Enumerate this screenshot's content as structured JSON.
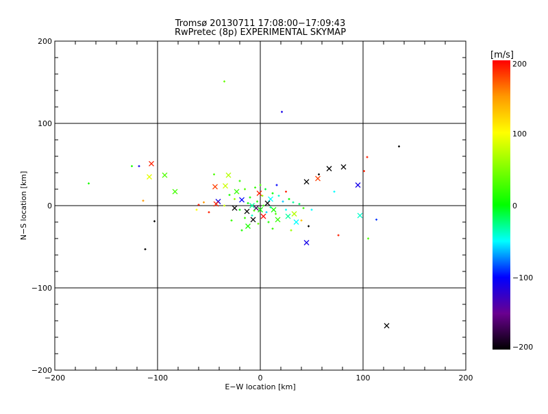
{
  "chart_data": {
    "type": "scatter",
    "title": "Tromsø 20130711 17:08:00−17:09:43",
    "subtitle": "RwPretec (8p) EXPERIMENTAL SKYMAP",
    "xlabel": "E−W location [km]",
    "ylabel": "N−S location [km]",
    "xlim": [
      -200,
      200
    ],
    "ylim": [
      -200,
      200
    ],
    "xticks": [
      "−200",
      "−100",
      "0",
      "100",
      "200"
    ],
    "yticks": [
      "−200",
      "−100",
      "0",
      "100",
      "200"
    ],
    "grid": true,
    "colorbar": {
      "label": "[m/s]",
      "range": [
        -200,
        200
      ],
      "ticks": [
        "200",
        "100",
        "0",
        "−100",
        "−200"
      ],
      "colormap": "rainbow (black-purple-blue-cyan-green-yellow-red)"
    },
    "points_fields": [
      "x_km",
      "y_km",
      "velocity_ms",
      "marker"
    ],
    "points": [
      [
        -106,
        51,
        190,
        "x"
      ],
      [
        -108,
        35,
        90,
        "x"
      ],
      [
        -93,
        37,
        30,
        "x"
      ],
      [
        -83,
        17,
        25,
        "x"
      ],
      [
        -44,
        23,
        180,
        "x"
      ],
      [
        -41,
        5,
        -110,
        "x"
      ],
      [
        -43,
        2,
        190,
        "x"
      ],
      [
        -34,
        24,
        80,
        "x"
      ],
      [
        -31,
        37,
        70,
        "x"
      ],
      [
        -25,
        -3,
        -200,
        "x"
      ],
      [
        -23,
        17,
        20,
        "x"
      ],
      [
        -13,
        -7,
        -200,
        "x"
      ],
      [
        -7,
        -17,
        -200,
        "x"
      ],
      [
        -18,
        7,
        -100,
        "x"
      ],
      [
        45,
        29,
        -200,
        "x"
      ],
      [
        56,
        33,
        180,
        "x"
      ],
      [
        67,
        45,
        -200,
        "x"
      ],
      [
        81,
        47,
        -200,
        "x"
      ],
      [
        95,
        25,
        -110,
        "x"
      ],
      [
        97,
        -12,
        -40,
        "x"
      ],
      [
        45,
        -45,
        -110,
        "x"
      ],
      [
        123,
        -146,
        -200,
        "x"
      ],
      [
        7,
        3,
        -200,
        "x"
      ],
      [
        -1,
        15,
        190,
        "x"
      ],
      [
        13,
        -5,
        10,
        "x"
      ],
      [
        -4,
        -3,
        -170,
        "x"
      ],
      [
        3,
        -13,
        200,
        "x"
      ],
      [
        17,
        -17,
        20,
        "x"
      ],
      [
        -12,
        -25,
        10,
        "x"
      ],
      [
        27,
        -13,
        -30,
        "x"
      ],
      [
        33,
        -10,
        70,
        "x"
      ],
      [
        35,
        -20,
        -50,
        "x"
      ],
      [
        0,
        -5,
        0,
        "x"
      ],
      [
        -8,
        0,
        -30,
        "x"
      ],
      [
        10,
        8,
        -50,
        "x"
      ],
      [
        -35,
        151,
        40,
        "+"
      ],
      [
        21,
        114,
        -110,
        "+"
      ],
      [
        135,
        72,
        -200,
        "+"
      ],
      [
        104,
        59,
        190,
        "+"
      ],
      [
        101,
        42,
        190,
        "+"
      ],
      [
        -125,
        48,
        10,
        "+"
      ],
      [
        -118,
        48,
        -110,
        "+"
      ],
      [
        -114,
        6,
        150,
        "+"
      ],
      [
        -167,
        27,
        10,
        "+"
      ],
      [
        -103,
        -19,
        -200,
        "+"
      ],
      [
        -112,
        -53,
        -200,
        "+"
      ],
      [
        113,
        -17,
        -90,
        "+"
      ],
      [
        105,
        -40,
        30,
        "+"
      ],
      [
        76,
        -36,
        190,
        "+"
      ],
      [
        72,
        17,
        -50,
        "+"
      ],
      [
        57,
        38,
        -200,
        "+"
      ],
      [
        47,
        -25,
        -200,
        "+"
      ],
      [
        25,
        17,
        190,
        "+"
      ],
      [
        -55,
        4,
        150,
        "+"
      ],
      [
        -60,
        1,
        190,
        "+"
      ],
      [
        -50,
        -8,
        190,
        "+"
      ],
      [
        -62,
        -5,
        100,
        "+"
      ],
      [
        -45,
        38,
        30,
        "+"
      ],
      [
        -30,
        13,
        10,
        "+"
      ],
      [
        -20,
        30,
        20,
        "+"
      ],
      [
        -15,
        20,
        30,
        "+"
      ],
      [
        -25,
        8,
        60,
        "+"
      ],
      [
        -35,
        0,
        80,
        "+"
      ],
      [
        -10,
        10,
        10,
        "+"
      ],
      [
        -5,
        22,
        20,
        "+"
      ],
      [
        0,
        25,
        30,
        "+"
      ],
      [
        5,
        20,
        -10,
        "+"
      ],
      [
        12,
        15,
        0,
        "+"
      ],
      [
        18,
        12,
        -40,
        "+"
      ],
      [
        22,
        5,
        -60,
        "+"
      ],
      [
        28,
        8,
        0,
        "+"
      ],
      [
        32,
        4,
        -30,
        "+"
      ],
      [
        38,
        2,
        -20,
        "+"
      ],
      [
        42,
        -3,
        20,
        "+"
      ],
      [
        25,
        -5,
        -50,
        "+"
      ],
      [
        15,
        -10,
        30,
        "+"
      ],
      [
        8,
        -20,
        10,
        "+"
      ],
      [
        -2,
        -22,
        40,
        "+"
      ],
      [
        -8,
        -12,
        -40,
        "+"
      ],
      [
        -15,
        -15,
        20,
        "+"
      ],
      [
        -20,
        -5,
        0,
        "+"
      ],
      [
        -3,
        5,
        10,
        "+"
      ],
      [
        3,
        0,
        20,
        "+"
      ],
      [
        6,
        -8,
        -60,
        "+"
      ],
      [
        -6,
        -6,
        30,
        "+"
      ],
      [
        10,
        -2,
        -30,
        "+"
      ],
      [
        -12,
        3,
        0,
        "+"
      ],
      [
        2,
        12,
        60,
        "+"
      ],
      [
        -18,
        -30,
        10,
        "+"
      ],
      [
        12,
        -28,
        20,
        "+"
      ],
      [
        30,
        -30,
        60,
        "+"
      ],
      [
        40,
        -18,
        130,
        "+"
      ],
      [
        50,
        -5,
        -50,
        "+"
      ],
      [
        16,
        25,
        -100,
        "+"
      ],
      [
        -28,
        -18,
        20,
        "+"
      ]
    ]
  }
}
